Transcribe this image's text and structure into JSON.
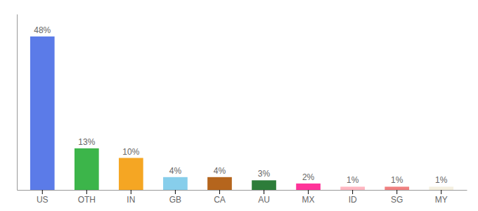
{
  "chart_data": {
    "type": "bar",
    "categories": [
      "US",
      "OTH",
      "IN",
      "GB",
      "CA",
      "AU",
      "MX",
      "ID",
      "SG",
      "MY"
    ],
    "values": [
      48,
      13,
      10,
      4,
      4,
      3,
      2,
      1,
      1,
      1
    ],
    "value_labels": [
      "48%",
      "13%",
      "10%",
      "4%",
      "4%",
      "3%",
      "2%",
      "1%",
      "1%",
      "1%"
    ],
    "colors": [
      "#5b7be8",
      "#3cb54a",
      "#f5a623",
      "#87ceeb",
      "#b5651d",
      "#2d7d3a",
      "#ff3399",
      "#ffb6c1",
      "#f08080",
      "#f5f0e0"
    ],
    "ylim": [
      0,
      55
    ],
    "grid": false,
    "tick_labels": "x"
  }
}
